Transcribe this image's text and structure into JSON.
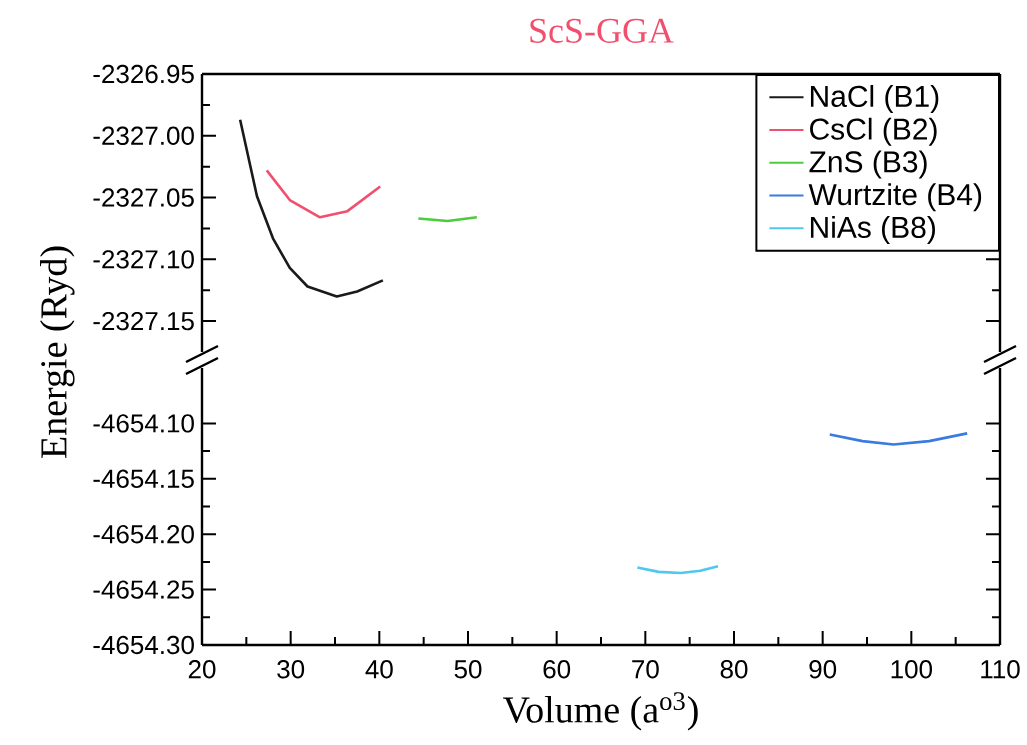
{
  "chart_data": [
    {
      "type": "line",
      "title": "ScS-GGA",
      "ylabel": "Energie (Ryd)",
      "xlim": [
        20,
        110
      ],
      "ylim": [
        -2327.175,
        -2326.95
      ],
      "yticks": [
        {
          "value": -2326.95,
          "label": "-2326.95"
        },
        {
          "value": -2327.0,
          "label": "-2327.00"
        },
        {
          "value": -2327.05,
          "label": "-2327.05"
        },
        {
          "value": -2327.1,
          "label": "-2327.10"
        },
        {
          "value": -2327.15,
          "label": "-2327.15"
        }
      ],
      "tick_labels": "y",
      "legend": "top right",
      "marker": "none",
      "line_style": "solid",
      "grid": false,
      "series": [
        {
          "name": "NaCl (B1)",
          "color": "#1a1a1a",
          "x": [
            24.3,
            26.2,
            28.0,
            29.9,
            31.9,
            35.2,
            37.5,
            40.4
          ],
          "values": [
            -2326.987,
            -2327.049,
            -2327.083,
            -2327.107,
            -2327.122,
            -2327.13,
            -2327.126,
            -2327.117
          ]
        },
        {
          "name": "CsCl (B2)",
          "color": "#f0506e",
          "x": [
            27.3,
            29.9,
            33.3,
            36.4,
            40.1
          ],
          "values": [
            -2327.028,
            -2327.052,
            -2327.066,
            -2327.061,
            -2327.041
          ]
        },
        {
          "name": "ZnS (B3)",
          "color": "#4ccc3c",
          "x": [
            44.4,
            47.7,
            51.0
          ],
          "values": [
            -2327.067,
            -2327.069,
            -2327.066
          ]
        }
      ]
    },
    {
      "type": "line",
      "xlabel": "Volume (a$^{o3}$)",
      "xlim": [
        20,
        110
      ],
      "ylim": [
        -4654.3,
        -4654.05
      ],
      "xticks": [
        20,
        30,
        40,
        50,
        60,
        70,
        80,
        90,
        100,
        110
      ],
      "yticks": [
        {
          "value": -4654.1,
          "label": "-4654.10"
        },
        {
          "value": -4654.15,
          "label": "-4654.15"
        },
        {
          "value": -4654.2,
          "label": "-4654.20"
        },
        {
          "value": -4654.25,
          "label": "-4654.25"
        },
        {
          "value": -4654.3,
          "label": "-4654.30"
        }
      ],
      "marker": "none",
      "line_style": "solid",
      "grid": false,
      "series": [
        {
          "name": "Wurtzite (B4)",
          "color": "#3a7be0",
          "x": [
            90.8,
            94.5,
            98.0,
            102.0,
            106.3
          ],
          "values": [
            -4654.11,
            -4654.116,
            -4654.119,
            -4654.116,
            -4654.109
          ]
        },
        {
          "name": "NiAs (B8)",
          "color": "#4ec8f0",
          "x": [
            69.1,
            71.5,
            74.0,
            76.2,
            78.2
          ],
          "values": [
            -4654.23,
            -4654.234,
            -4654.235,
            -4654.233,
            -4654.229
          ]
        }
      ]
    }
  ]
}
